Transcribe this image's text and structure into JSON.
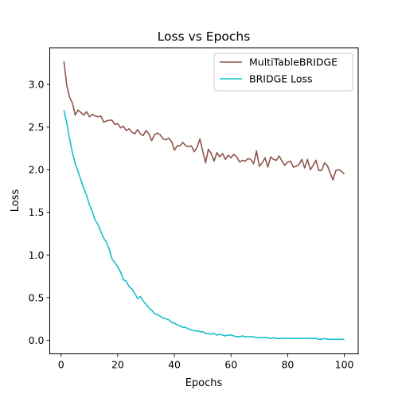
{
  "chart_data": {
    "type": "line",
    "title": "Loss vs Epochs",
    "xlabel": "Epochs",
    "ylabel": "Loss",
    "xlim": [
      -4.0,
      104.9
    ],
    "ylim": [
      -0.16,
      3.43
    ],
    "xticks": [
      0,
      20,
      40,
      60,
      80,
      100
    ],
    "yticks": [
      0.0,
      0.5,
      1.0,
      1.5,
      2.0,
      2.5,
      3.0
    ],
    "grid": false,
    "legend": "upper right",
    "series": [
      {
        "name": "MultiTableBRIDGE",
        "color": "#8c564b",
        "x": [
          1,
          2,
          3,
          4,
          5,
          6,
          7,
          8,
          9,
          10,
          11,
          12,
          13,
          14,
          15,
          16,
          17,
          18,
          19,
          20,
          21,
          22,
          23,
          24,
          25,
          26,
          27,
          28,
          29,
          30,
          31,
          32,
          33,
          34,
          35,
          36,
          37,
          38,
          39,
          40,
          41,
          42,
          43,
          44,
          45,
          46,
          47,
          48,
          49,
          50,
          51,
          52,
          53,
          54,
          55,
          56,
          57,
          58,
          59,
          60,
          61,
          62,
          63,
          64,
          65,
          66,
          67,
          68,
          69,
          70,
          71,
          72,
          73,
          74,
          75,
          76,
          77,
          78,
          79,
          80,
          81,
          82,
          83,
          84,
          85,
          86,
          87,
          88,
          89,
          90,
          91,
          92,
          93,
          94,
          95,
          96,
          97,
          98,
          99,
          100
        ],
        "values": [
          3.27,
          2.99,
          2.85,
          2.78,
          2.64,
          2.7,
          2.67,
          2.64,
          2.68,
          2.62,
          2.65,
          2.63,
          2.62,
          2.63,
          2.56,
          2.57,
          2.58,
          2.58,
          2.53,
          2.54,
          2.49,
          2.51,
          2.46,
          2.48,
          2.44,
          2.42,
          2.47,
          2.42,
          2.4,
          2.46,
          2.42,
          2.34,
          2.41,
          2.43,
          2.41,
          2.36,
          2.35,
          2.37,
          2.33,
          2.23,
          2.28,
          2.28,
          2.32,
          2.28,
          2.27,
          2.28,
          2.21,
          2.26,
          2.36,
          2.22,
          2.08,
          2.24,
          2.19,
          2.1,
          2.2,
          2.15,
          2.19,
          2.12,
          2.17,
          2.14,
          2.18,
          2.15,
          2.09,
          2.11,
          2.1,
          2.13,
          2.12,
          2.07,
          2.22,
          2.04,
          2.08,
          2.14,
          2.03,
          2.15,
          2.12,
          2.11,
          2.16,
          2.1,
          2.05,
          2.09,
          2.1,
          2.03,
          2.04,
          2.06,
          2.12,
          2.02,
          2.12,
          2.0,
          2.05,
          2.11,
          1.99,
          1.99,
          2.08,
          2.05,
          1.96,
          1.88,
          1.99,
          2.0,
          1.98,
          1.95
        ]
      },
      {
        "name": "BRIDGE Loss",
        "color": "#17becf",
        "x": [
          1,
          2,
          3,
          4,
          5,
          6,
          7,
          8,
          9,
          10,
          11,
          12,
          13,
          14,
          15,
          16,
          17,
          18,
          19,
          20,
          21,
          22,
          23,
          24,
          25,
          26,
          27,
          28,
          29,
          30,
          31,
          32,
          33,
          34,
          35,
          36,
          37,
          38,
          39,
          40,
          41,
          42,
          43,
          44,
          45,
          46,
          47,
          48,
          49,
          50,
          51,
          52,
          53,
          54,
          55,
          56,
          57,
          58,
          59,
          60,
          61,
          62,
          63,
          64,
          65,
          66,
          67,
          68,
          69,
          70,
          71,
          72,
          73,
          74,
          75,
          76,
          77,
          78,
          79,
          80,
          81,
          82,
          83,
          84,
          85,
          86,
          87,
          88,
          89,
          90,
          91,
          92,
          93,
          94,
          95,
          96,
          97,
          98,
          99,
          100
        ],
        "values": [
          2.7,
          2.55,
          2.36,
          2.2,
          2.07,
          1.98,
          1.88,
          1.78,
          1.7,
          1.59,
          1.51,
          1.41,
          1.36,
          1.28,
          1.2,
          1.15,
          1.07,
          0.95,
          0.91,
          0.86,
          0.8,
          0.71,
          0.69,
          0.63,
          0.6,
          0.55,
          0.49,
          0.51,
          0.46,
          0.42,
          0.38,
          0.35,
          0.31,
          0.3,
          0.28,
          0.26,
          0.25,
          0.24,
          0.21,
          0.2,
          0.18,
          0.17,
          0.15,
          0.15,
          0.13,
          0.12,
          0.11,
          0.11,
          0.1,
          0.1,
          0.08,
          0.08,
          0.07,
          0.08,
          0.06,
          0.07,
          0.06,
          0.05,
          0.06,
          0.06,
          0.05,
          0.04,
          0.04,
          0.05,
          0.04,
          0.04,
          0.04,
          0.04,
          0.03,
          0.03,
          0.03,
          0.03,
          0.03,
          0.02,
          0.03,
          0.02,
          0.02,
          0.02,
          0.02,
          0.02,
          0.02,
          0.02,
          0.02,
          0.02,
          0.02,
          0.02,
          0.02,
          0.02,
          0.02,
          0.02,
          0.01,
          0.01,
          0.02,
          0.01,
          0.01,
          0.01,
          0.01,
          0.01,
          0.01,
          0.01
        ]
      }
    ]
  }
}
